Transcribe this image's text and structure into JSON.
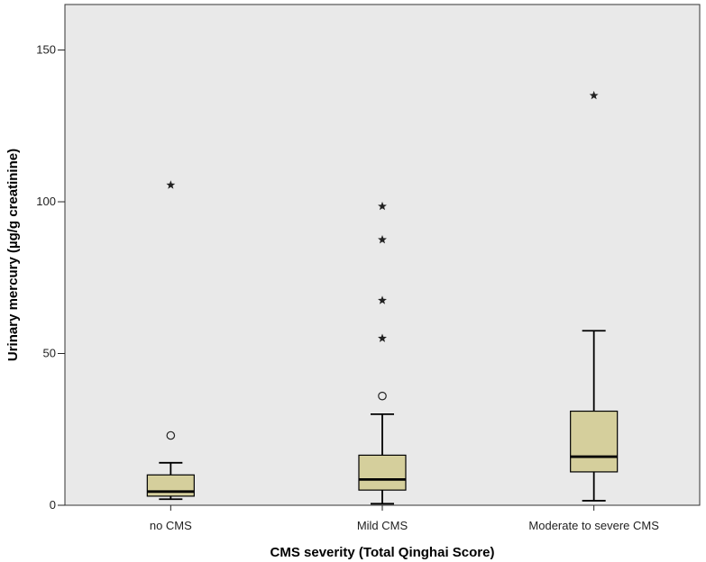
{
  "chart_data": {
    "type": "boxplot",
    "title": "",
    "xlabel": "CMS severity (Total Qinghai Score)",
    "ylabel": "Urinary mercury (µg/g creatinine)",
    "ylim": [
      0,
      165
    ],
    "yticks": [
      0,
      50,
      100,
      150
    ],
    "grid": false,
    "plot_background": "#e9e9e9",
    "box_fill": "#d5cf9c",
    "categories": [
      "no CMS",
      "Mild CMS",
      "Moderate to severe CMS"
    ],
    "boxes": [
      {
        "category": "no CMS",
        "whisker_low": 2,
        "q1": 3,
        "median": 4.5,
        "q3": 10,
        "whisker_high": 14,
        "outliers": [
          23
        ],
        "extremes": [
          105.5
        ]
      },
      {
        "category": "Mild CMS",
        "whisker_low": 0.5,
        "q1": 5,
        "median": 8.5,
        "q3": 16.5,
        "whisker_high": 30,
        "outliers": [
          36
        ],
        "extremes": [
          55,
          67.5,
          87.5,
          98.5
        ]
      },
      {
        "category": "Moderate to severe CMS",
        "whisker_low": 1.5,
        "q1": 11,
        "median": 16,
        "q3": 31,
        "whisker_high": 57.5,
        "outliers": [],
        "extremes": [
          135
        ]
      }
    ],
    "symbols": {
      "outlier": "circle",
      "extreme": "star"
    }
  }
}
